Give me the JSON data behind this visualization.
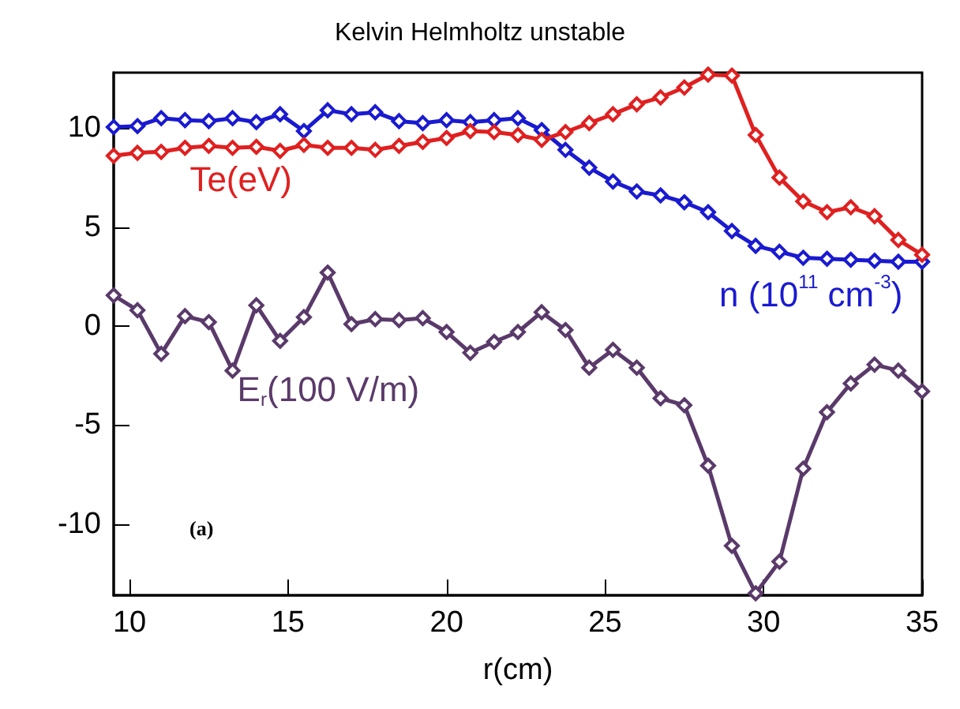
{
  "chart_data": {
    "type": "line",
    "title": "Kelvin Helmholtz unstable",
    "xlabel": "r(cm)",
    "x": [
      9.5,
      10.25,
      11,
      11.75,
      12.5,
      13.25,
      14,
      14.75,
      15.5,
      16.25,
      17,
      17.75,
      18.5,
      19.25,
      20,
      20.75,
      21.5,
      22.25,
      23,
      23.75,
      24.5,
      25.25,
      26,
      26.75,
      27.5,
      28.25,
      29,
      29.75,
      30.5,
      31.25,
      32,
      32.75,
      33.5,
      34.25,
      35
    ],
    "series": [
      {
        "name": "n (10$^{11}$ cm$^{-3}$)",
        "color": "#1a1ad0",
        "values": [
          10.05,
          10.1,
          10.5,
          10.4,
          10.35,
          10.5,
          10.3,
          10.7,
          9.85,
          10.9,
          10.7,
          10.8,
          10.35,
          10.25,
          10.4,
          10.3,
          10.4,
          10.5,
          9.9,
          8.9,
          8.0,
          7.3,
          6.8,
          6.6,
          6.25,
          5.75,
          4.8,
          4.05,
          3.75,
          3.45,
          3.4,
          3.35,
          3.3,
          3.25,
          3.25
        ]
      },
      {
        "name": "Te(eV)",
        "color": "#e02020",
        "values": [
          8.6,
          8.75,
          8.8,
          9.0,
          9.1,
          9.0,
          9.05,
          8.85,
          9.15,
          9.0,
          9.0,
          8.9,
          9.1,
          9.3,
          9.5,
          9.85,
          9.8,
          9.65,
          9.4,
          9.8,
          10.25,
          10.7,
          11.2,
          11.55,
          12.05,
          12.7,
          12.65,
          9.65,
          7.5,
          6.3,
          5.75,
          6.0,
          5.55,
          4.35,
          3.6
        ]
      },
      {
        "name": "E$_{r}$(100 V/m)",
        "color": "#5a3a6a",
        "values": [
          1.55,
          0.8,
          -1.4,
          0.5,
          0.2,
          -2.25,
          1.05,
          -0.75,
          0.45,
          2.7,
          0.1,
          0.35,
          0.3,
          0.4,
          -0.3,
          -1.35,
          -0.8,
          -0.3,
          0.7,
          -0.2,
          -2.1,
          -1.2,
          -2.1,
          -3.65,
          -4.0,
          -7.05,
          -11.1,
          -13.5,
          -11.9,
          -7.2,
          -4.35,
          -2.9,
          -1.95,
          -2.25,
          -3.3
        ]
      }
    ],
    "xlim": [
      9.5,
      35
    ],
    "xticks": [
      10,
      15,
      20,
      25,
      30,
      35
    ],
    "ylim": [
      -13.6,
      12.8
    ],
    "yticks": [
      -10,
      -5,
      0,
      5,
      10
    ],
    "grid": false,
    "legend": false,
    "marker": "diamond",
    "line_style": "solid",
    "annotations": [
      "(a)"
    ]
  }
}
